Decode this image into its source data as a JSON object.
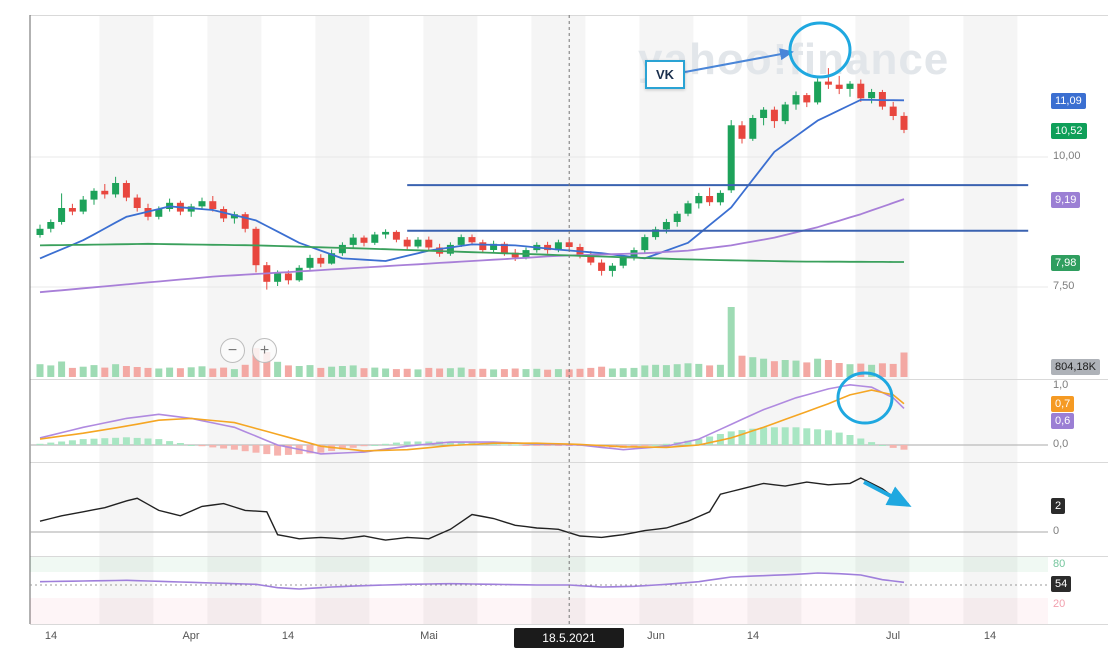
{
  "watermark": "yahoo!finance",
  "annotations": {
    "vk_label": "VK"
  },
  "toolbar": {
    "zoom_out": "−",
    "zoom_in": "+"
  },
  "crosshair": {
    "date_label": "18.5.2021",
    "day_index": 49
  },
  "price_axis": {
    "blue_ma_tag": "11,09",
    "last_price_tag": "10,52",
    "grid_10": "10,00",
    "purple_ma_tag": "9,19",
    "green_ma_tag": "7,98",
    "grid_7_5": "7,50",
    "volume_tag": "804,18K"
  },
  "macd_axis": {
    "top": "1,0",
    "signal_tag": "0,7",
    "line_tag": "0,6",
    "zero": "0,0"
  },
  "osc_axis": {
    "value_tag": "2",
    "zero": "0"
  },
  "rsi_axis": {
    "upper": "80",
    "value_tag": "54",
    "lower": "20"
  },
  "x_axis_ticks": [
    {
      "label": "14",
      "day": 1
    },
    {
      "label": "Apr",
      "day": 14
    },
    {
      "label": "14",
      "day": 23
    },
    {
      "label": "Mai",
      "day": 36
    },
    {
      "label": "Jun",
      "day": 57
    },
    {
      "label": "14",
      "day": 66
    },
    {
      "label": "Jul",
      "day": 79
    },
    {
      "label": "14",
      "day": 88
    }
  ],
  "chart_data": {
    "type": "candlestick",
    "subtype": "price+volume+macd+oscillator+rsi",
    "locale": "de",
    "volume_unit": "K",
    "price_panel": {
      "grid_prices": [
        10.0,
        7.5
      ],
      "visible_price_range": [
        7.0,
        12.7
      ],
      "last_price": 10.52,
      "last_volume_k": 804.18,
      "candles_ohlcv": [
        [
          8.5,
          8.7,
          8.45,
          8.62,
          420
        ],
        [
          8.62,
          8.8,
          8.55,
          8.75,
          380
        ],
        [
          8.75,
          9.3,
          8.7,
          9.02,
          510
        ],
        [
          9.02,
          9.1,
          8.88,
          8.95,
          300
        ],
        [
          8.95,
          9.25,
          8.9,
          9.18,
          340
        ],
        [
          9.18,
          9.4,
          9.08,
          9.35,
          390
        ],
        [
          9.35,
          9.48,
          9.2,
          9.28,
          310
        ],
        [
          9.28,
          9.62,
          9.22,
          9.5,
          420
        ],
        [
          9.5,
          9.55,
          9.15,
          9.22,
          360
        ],
        [
          9.22,
          9.28,
          8.95,
          9.02,
          330
        ],
        [
          9.02,
          9.1,
          8.78,
          8.85,
          300
        ],
        [
          8.85,
          9.05,
          8.8,
          9.0,
          280
        ],
        [
          9.0,
          9.2,
          8.95,
          9.12,
          310
        ],
        [
          9.12,
          9.16,
          8.88,
          8.95,
          290
        ],
        [
          8.95,
          9.1,
          8.85,
          9.05,
          320
        ],
        [
          9.05,
          9.22,
          9.0,
          9.15,
          350
        ],
        [
          9.15,
          9.25,
          8.95,
          9.0,
          280
        ],
        [
          9.0,
          9.05,
          8.75,
          8.82,
          310
        ],
        [
          8.82,
          8.95,
          8.72,
          8.9,
          260
        ],
        [
          8.9,
          8.94,
          8.55,
          8.62,
          400
        ],
        [
          8.62,
          8.66,
          7.78,
          7.92,
          950
        ],
        [
          7.92,
          7.98,
          7.45,
          7.6,
          820
        ],
        [
          7.6,
          7.82,
          7.52,
          7.76,
          500
        ],
        [
          7.76,
          7.82,
          7.55,
          7.63,
          380
        ],
        [
          7.63,
          7.92,
          7.6,
          7.87,
          360
        ],
        [
          7.87,
          8.12,
          7.83,
          8.06,
          390
        ],
        [
          8.06,
          8.13,
          7.88,
          7.95,
          300
        ],
        [
          7.95,
          8.22,
          7.93,
          8.15,
          340
        ],
        [
          8.15,
          8.36,
          8.1,
          8.31,
          360
        ],
        [
          8.31,
          8.52,
          8.26,
          8.45,
          380
        ],
        [
          8.45,
          8.49,
          8.28,
          8.35,
          290
        ],
        [
          8.35,
          8.56,
          8.31,
          8.51,
          310
        ],
        [
          8.51,
          8.61,
          8.43,
          8.56,
          280
        ],
        [
          8.56,
          8.59,
          8.36,
          8.41,
          260
        ],
        [
          8.41,
          8.46,
          8.22,
          8.28,
          270
        ],
        [
          8.28,
          8.46,
          8.24,
          8.41,
          250
        ],
        [
          8.41,
          8.47,
          8.2,
          8.26,
          300
        ],
        [
          8.26,
          8.33,
          8.08,
          8.14,
          280
        ],
        [
          8.14,
          8.36,
          8.1,
          8.31,
          290
        ],
        [
          8.31,
          8.51,
          8.27,
          8.46,
          310
        ],
        [
          8.46,
          8.51,
          8.3,
          8.36,
          260
        ],
        [
          8.36,
          8.41,
          8.15,
          8.21,
          270
        ],
        [
          8.21,
          8.39,
          8.17,
          8.33,
          250
        ],
        [
          8.33,
          8.37,
          8.1,
          8.16,
          260
        ],
        [
          8.16,
          8.23,
          8.0,
          8.07,
          280
        ],
        [
          8.07,
          8.26,
          8.03,
          8.21,
          260
        ],
        [
          8.21,
          8.36,
          8.16,
          8.31,
          270
        ],
        [
          8.31,
          8.37,
          8.14,
          8.21,
          240
        ],
        [
          8.21,
          8.41,
          8.17,
          8.36,
          260
        ],
        [
          8.36,
          8.43,
          8.21,
          8.27,
          250
        ],
        [
          8.27,
          8.33,
          8.05,
          8.11,
          270
        ],
        [
          8.11,
          8.19,
          7.92,
          7.97,
          300
        ],
        [
          7.97,
          8.03,
          7.72,
          7.81,
          340
        ],
        [
          7.81,
          7.96,
          7.7,
          7.91,
          280
        ],
        [
          7.91,
          8.11,
          7.86,
          8.06,
          290
        ],
        [
          8.06,
          8.26,
          8.01,
          8.21,
          300
        ],
        [
          8.21,
          8.51,
          8.16,
          8.46,
          380
        ],
        [
          8.46,
          8.66,
          8.41,
          8.61,
          400
        ],
        [
          8.61,
          8.81,
          8.53,
          8.75,
          390
        ],
        [
          8.75,
          8.96,
          8.66,
          8.91,
          420
        ],
        [
          8.91,
          9.16,
          8.86,
          9.11,
          450
        ],
        [
          9.11,
          9.31,
          9.01,
          9.25,
          430
        ],
        [
          9.25,
          9.41,
          9.06,
          9.13,
          380
        ],
        [
          9.13,
          9.36,
          9.07,
          9.31,
          400
        ],
        [
          9.36,
          10.71,
          9.31,
          10.61,
          2300
        ],
        [
          10.61,
          10.69,
          10.26,
          10.35,
          700
        ],
        [
          10.35,
          10.81,
          10.31,
          10.75,
          650
        ],
        [
          10.75,
          10.96,
          10.61,
          10.91,
          600
        ],
        [
          10.91,
          10.97,
          10.56,
          10.69,
          520
        ],
        [
          10.69,
          11.06,
          10.63,
          11.01,
          560
        ],
        [
          11.01,
          11.26,
          10.91,
          11.19,
          540
        ],
        [
          11.19,
          11.23,
          10.96,
          11.05,
          480
        ],
        [
          11.05,
          11.51,
          11.01,
          11.45,
          600
        ],
        [
          11.45,
          11.71,
          11.31,
          11.39,
          560
        ],
        [
          11.39,
          11.56,
          11.21,
          11.31,
          460
        ],
        [
          11.31,
          11.46,
          11.16,
          11.41,
          420
        ],
        [
          11.41,
          11.49,
          11.06,
          11.13,
          440
        ],
        [
          11.13,
          11.31,
          11.03,
          11.25,
          400
        ],
        [
          11.25,
          11.29,
          10.91,
          10.97,
          450
        ],
        [
          10.97,
          11.06,
          10.71,
          10.79,
          430
        ],
        [
          10.79,
          10.86,
          10.46,
          10.52,
          804.18
        ]
      ],
      "moving_averages": [
        {
          "name": "ma-fast",
          "value": 11.09,
          "color": "#3b6fd1",
          "points": [
            [
              0,
              8.05
            ],
            [
              4,
              8.4
            ],
            [
              8,
              8.85
            ],
            [
              12,
              9.05
            ],
            [
              16,
              8.98
            ],
            [
              20,
              8.78
            ],
            [
              24,
              8.35
            ],
            [
              28,
              8.05
            ],
            [
              32,
              8.0
            ],
            [
              36,
              8.2
            ],
            [
              40,
              8.32
            ],
            [
              44,
              8.3
            ],
            [
              48,
              8.22
            ],
            [
              52,
              8.15
            ],
            [
              56,
              8.05
            ],
            [
              60,
              8.35
            ],
            [
              64,
              9.03
            ],
            [
              68,
              10.1
            ],
            [
              72,
              10.7
            ],
            [
              76,
              11.1
            ],
            [
              80,
              11.09
            ]
          ]
        },
        {
          "name": "ma-medium",
          "value": 9.19,
          "color": "#a87fd8",
          "points": [
            [
              0,
              7.4
            ],
            [
              8,
              7.55
            ],
            [
              16,
              7.7
            ],
            [
              24,
              7.8
            ],
            [
              32,
              7.9
            ],
            [
              40,
              8.0
            ],
            [
              48,
              8.1
            ],
            [
              56,
              8.15
            ],
            [
              60,
              8.2
            ],
            [
              64,
              8.3
            ],
            [
              68,
              8.45
            ],
            [
              72,
              8.65
            ],
            [
              76,
              8.9
            ],
            [
              80,
              9.19
            ]
          ]
        },
        {
          "name": "ma-slow",
          "value": 7.98,
          "color": "#3aa05c",
          "points": [
            [
              0,
              8.3
            ],
            [
              10,
              8.33
            ],
            [
              20,
              8.3
            ],
            [
              30,
              8.24
            ],
            [
              40,
              8.17
            ],
            [
              50,
              8.1
            ],
            [
              60,
              8.03
            ],
            [
              70,
              7.99
            ],
            [
              80,
              7.98
            ]
          ]
        }
      ],
      "horizontal_lines": [
        {
          "price": 9.46,
          "from_day": 34,
          "to_day": 91.5,
          "color": "#3a62b0"
        },
        {
          "price": 8.58,
          "from_day": 34,
          "to_day": 91.5,
          "color": "#3a62b0"
        }
      ],
      "up_color": "#1da25a",
      "down_color": "#e8463e",
      "vol_up_color": "#9edbb4",
      "vol_down_color": "#f3a8a3"
    },
    "macd_panel": {
      "grid_values": [
        1.0,
        0.0
      ],
      "signal_value": 0.7,
      "line_value": 0.6,
      "line_color": "#b08ae0",
      "signal_color": "#f5a623",
      "hist_up_color": "#a8e6c3",
      "hist_down_color": "#f6b3ae",
      "line_points": [
        [
          0,
          0.12
        ],
        [
          4,
          0.3
        ],
        [
          8,
          0.45
        ],
        [
          11,
          0.52
        ],
        [
          14,
          0.45
        ],
        [
          18,
          0.3
        ],
        [
          22,
          0.0
        ],
        [
          26,
          -0.15
        ],
        [
          30,
          -0.12
        ],
        [
          34,
          -0.02
        ],
        [
          38,
          0.05
        ],
        [
          42,
          0.05
        ],
        [
          46,
          0.02
        ],
        [
          50,
          0.0
        ],
        [
          54,
          -0.08
        ],
        [
          58,
          -0.02
        ],
        [
          61,
          0.1
        ],
        [
          64,
          0.35
        ],
        [
          67,
          0.6
        ],
        [
          70,
          0.8
        ],
        [
          73,
          0.95
        ],
        [
          75,
          1.02
        ],
        [
          77,
          0.98
        ],
        [
          79,
          0.8
        ],
        [
          80,
          0.62
        ]
      ],
      "signal_points": [
        [
          0,
          0.1
        ],
        [
          4,
          0.2
        ],
        [
          8,
          0.32
        ],
        [
          11,
          0.42
        ],
        [
          14,
          0.45
        ],
        [
          18,
          0.38
        ],
        [
          22,
          0.18
        ],
        [
          26,
          -0.02
        ],
        [
          30,
          -0.1
        ],
        [
          34,
          -0.08
        ],
        [
          38,
          -0.01
        ],
        [
          42,
          0.03
        ],
        [
          46,
          0.03
        ],
        [
          50,
          0.01
        ],
        [
          54,
          -0.03
        ],
        [
          58,
          -0.04
        ],
        [
          61,
          0.0
        ],
        [
          64,
          0.12
        ],
        [
          67,
          0.3
        ],
        [
          70,
          0.5
        ],
        [
          73,
          0.7
        ],
        [
          75,
          0.85
        ],
        [
          77,
          0.93
        ],
        [
          79,
          0.85
        ],
        [
          80,
          0.7
        ]
      ]
    },
    "oscillator_panel": {
      "current_value": 2,
      "zero": 0,
      "line_color": "#222222",
      "line_points": [
        [
          0,
          0.8
        ],
        [
          2,
          1.2
        ],
        [
          4,
          1.5
        ],
        [
          6,
          1.8
        ],
        [
          8,
          2.3
        ],
        [
          9,
          2.5
        ],
        [
          11,
          1.6
        ],
        [
          13,
          1.2
        ],
        [
          15,
          1.9
        ],
        [
          17,
          2.1
        ],
        [
          19,
          1.6
        ],
        [
          21,
          1.5
        ],
        [
          22,
          -0.2
        ],
        [
          24,
          -0.5
        ],
        [
          26,
          -0.4
        ],
        [
          28,
          -0.5
        ],
        [
          30,
          -0.3
        ],
        [
          32,
          -0.6
        ],
        [
          34,
          -0.4
        ],
        [
          36,
          -0.5
        ],
        [
          38,
          0.2
        ],
        [
          40,
          1.3
        ],
        [
          42,
          1.0
        ],
        [
          44,
          0.5
        ],
        [
          46,
          0.3
        ],
        [
          48,
          0.2
        ],
        [
          50,
          -0.3
        ],
        [
          52,
          -0.4
        ],
        [
          54,
          -0.2
        ],
        [
          56,
          0.1
        ],
        [
          58,
          0.3
        ],
        [
          60,
          0.8
        ],
        [
          62,
          1.5
        ],
        [
          63,
          2.8
        ],
        [
          65,
          3.2
        ],
        [
          67,
          3.6
        ],
        [
          69,
          3.4
        ],
        [
          71,
          3.7
        ],
        [
          73,
          3.5
        ],
        [
          75,
          3.6
        ],
        [
          76,
          4.0
        ],
        [
          78,
          3.2
        ],
        [
          80,
          2.0
        ]
      ]
    },
    "rsi_panel": {
      "current_value": 54,
      "levels": [
        80,
        50,
        20
      ],
      "line_color": "#9f7fdb",
      "line_points": [
        [
          0,
          55
        ],
        [
          4,
          56
        ],
        [
          8,
          57
        ],
        [
          12,
          55
        ],
        [
          16,
          53
        ],
        [
          20,
          51
        ],
        [
          22,
          46
        ],
        [
          24,
          44
        ],
        [
          27,
          47
        ],
        [
          30,
          49
        ],
        [
          34,
          51
        ],
        [
          38,
          52
        ],
        [
          42,
          51
        ],
        [
          46,
          50
        ],
        [
          49,
          50
        ],
        [
          52,
          47
        ],
        [
          55,
          48
        ],
        [
          58,
          51
        ],
        [
          61,
          55
        ],
        [
          64,
          62
        ],
        [
          67,
          64
        ],
        [
          70,
          66
        ],
        [
          72,
          68
        ],
        [
          74,
          67
        ],
        [
          76,
          65
        ],
        [
          78,
          58
        ],
        [
          80,
          54
        ]
      ]
    }
  }
}
